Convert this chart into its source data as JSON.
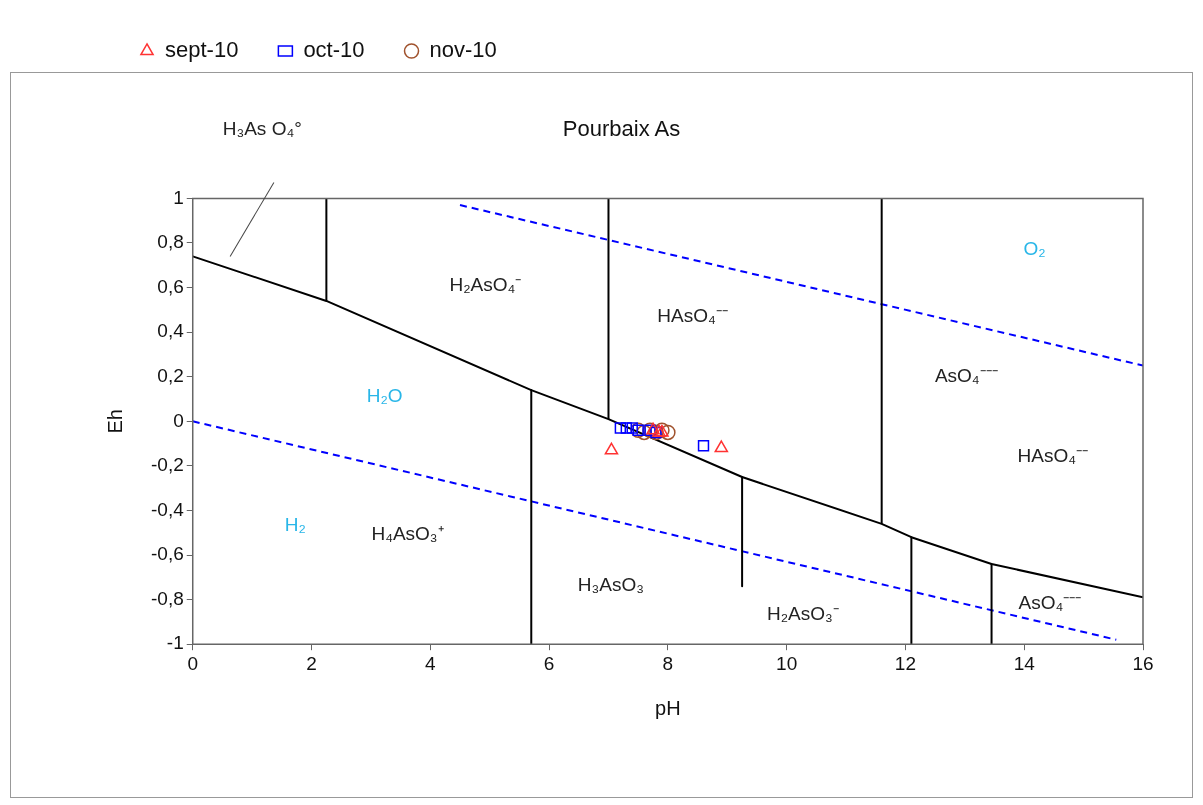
{
  "chart_data": {
    "type": "scatter",
    "title": "Pourbaix As",
    "xlabel": "pH",
    "ylabel": "Eh",
    "xlim": [
      0,
      16
    ],
    "xticks": [
      0,
      2,
      4,
      6,
      8,
      10,
      12,
      14,
      16
    ],
    "ylim": [
      -1,
      1
    ],
    "yticks": [
      {
        "value": -1,
        "label": "-1"
      },
      {
        "value": -0.8,
        "label": "-0,8"
      },
      {
        "value": -0.6,
        "label": "-0,6"
      },
      {
        "value": -0.4,
        "label": "-0,4"
      },
      {
        "value": -0.2,
        "label": "-0,2"
      },
      {
        "value": 0,
        "label": "0"
      },
      {
        "value": 0.2,
        "label": "0,2"
      },
      {
        "value": 0.4,
        "label": "0,4"
      },
      {
        "value": 0.6,
        "label": "0,6"
      },
      {
        "value": 0.8,
        "label": "0,8"
      },
      {
        "value": 1,
        "label": "1"
      }
    ],
    "grid": false,
    "legend": "top left",
    "series": [
      {
        "type": "line",
        "color": "#000000",
        "line_style": "solid",
        "marker": "none",
        "x": [
          0,
          2.25,
          5.7,
          7,
          9.25,
          11.6,
          12.1,
          13.45,
          16
        ],
        "values": [
          0.74,
          0.54,
          0.14,
          0.01,
          -0.25,
          -0.46,
          -0.52,
          -0.64,
          -0.79
        ]
      },
      {
        "type": "line",
        "color": "#000000",
        "line_style": "solid",
        "marker": "none",
        "x": [
          2.25,
          2.25
        ],
        "values": [
          0.54,
          1
        ]
      },
      {
        "type": "line",
        "color": "#000000",
        "line_style": "solid",
        "marker": "none",
        "x": [
          7,
          7
        ],
        "values": [
          0.01,
          1
        ]
      },
      {
        "type": "line",
        "color": "#000000",
        "line_style": "solid",
        "marker": "none",
        "x": [
          11.6,
          11.6
        ],
        "values": [
          -0.46,
          1
        ]
      },
      {
        "type": "line",
        "color": "#000000",
        "line_style": "solid",
        "marker": "none",
        "x": [
          5.7,
          5.7
        ],
        "values": [
          0.14,
          -1
        ]
      },
      {
        "type": "line",
        "color": "#000000",
        "line_style": "solid",
        "marker": "none",
        "x": [
          9.25,
          9.25
        ],
        "values": [
          -0.25,
          -0.74
        ]
      },
      {
        "type": "line",
        "color": "#000000",
        "line_style": "solid",
        "marker": "none",
        "x": [
          12.1,
          12.1
        ],
        "values": [
          -0.52,
          -1
        ]
      },
      {
        "type": "line",
        "color": "#000000",
        "line_style": "solid",
        "marker": "none",
        "x": [
          13.45,
          13.45
        ],
        "values": [
          -0.64,
          -1
        ]
      },
      {
        "type": "line",
        "color": "#0000ff",
        "line_style": "dashed",
        "marker": "none",
        "x": [
          0,
          15.55
        ],
        "values": [
          0,
          -0.98
        ]
      },
      {
        "type": "line",
        "color": "#0000ff",
        "line_style": "dashed",
        "marker": "none",
        "x": [
          4.5,
          16
        ],
        "values": [
          0.97,
          0.25
        ]
      },
      {
        "name": "sept-10",
        "type": "scatter",
        "color": "#ff3333",
        "marker": "triangle",
        "x": [
          7.05,
          7.75,
          7.85,
          7.9,
          8.9
        ],
        "values": [
          -0.13,
          -0.04,
          -0.05,
          -0.05,
          -0.12
        ]
      },
      {
        "name": "oct-10",
        "type": "scatter",
        "color": "#0000ff",
        "marker": "square",
        "x": [
          7.2,
          7.3,
          7.4,
          7.5,
          7.7,
          7.8,
          8.6
        ],
        "values": [
          -0.03,
          -0.03,
          -0.03,
          -0.04,
          -0.04,
          -0.05,
          -0.11
        ]
      },
      {
        "name": "nov-10",
        "type": "scatter",
        "color": "#a0522d",
        "marker": "circle",
        "x": [
          7.5,
          7.6,
          7.7,
          7.8,
          7.9,
          8
        ],
        "values": [
          -0.04,
          -0.05,
          -0.04,
          -0.05,
          -0.04,
          -0.05
        ]
      }
    ],
    "annotations": [
      "H₃As O₄°",
      "H₂AsO₄⁻",
      "HAsO₄⁻⁻",
      "O₂",
      "AsO₄⁻⁻⁻",
      "HAsO₄⁻⁻",
      "H₂O",
      "H₂",
      "H₄AsO₃⁺",
      "H₃AsO₃",
      "H₂AsO₃⁻",
      "AsO₄⁻⁻⁻"
    ]
  }
}
